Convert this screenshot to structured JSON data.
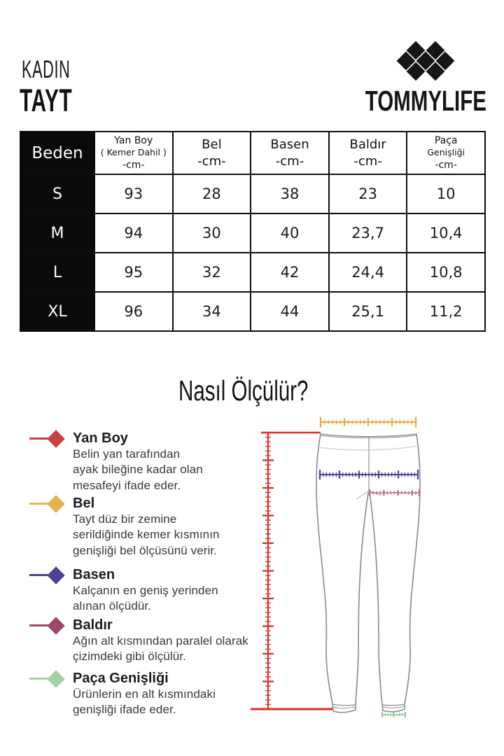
{
  "header": {
    "category": "KADIN",
    "product_type": "TAYT",
    "brand": "TOMMYLIFE"
  },
  "size_table": {
    "corner_label": "Beden",
    "columns": [
      {
        "title": "Yan Boy",
        "subtitle": "( Kemer Dahil )",
        "unit": "-cm-"
      },
      {
        "title": "Bel",
        "subtitle": "",
        "unit": "-cm-"
      },
      {
        "title": "Basen",
        "subtitle": "",
        "unit": "-cm-"
      },
      {
        "title": "Baldır",
        "subtitle": "",
        "unit": "-cm-"
      },
      {
        "title": "Paça",
        "subtitle": "Genişliği",
        "unit": "-cm-"
      }
    ],
    "rows": [
      {
        "size": "S",
        "values": [
          "93",
          "28",
          "38",
          "23",
          "10"
        ]
      },
      {
        "size": "M",
        "values": [
          "94",
          "30",
          "40",
          "23,7",
          "10,4"
        ]
      },
      {
        "size": "L",
        "values": [
          "95",
          "32",
          "42",
          "24,4",
          "10,8"
        ]
      },
      {
        "size": "XL",
        "values": [
          "96",
          "34",
          "44",
          "25,1",
          "11,2"
        ]
      }
    ]
  },
  "how_to_measure": {
    "title": "Nasıl Ölçülür?",
    "items": [
      {
        "label": "Yan Boy",
        "color": "#C8403E",
        "lines": [
          "Belin yan tarafından",
          "ayak bileğine kadar olan",
          "mesafeyi ifade eder."
        ]
      },
      {
        "label": "Bel",
        "color": "#E3B44F",
        "lines": [
          "Tayt düz bir zemine",
          "serildiğinde kemer kısmının",
          "genişliği bel ölçüsünü verir."
        ]
      },
      {
        "label": "Basen",
        "color": "#4C4397",
        "lines": [
          "Kalçanın en geniş yerinden",
          "alınan ölçüdür."
        ]
      },
      {
        "label": "Baldır",
        "color": "#9C4A6B",
        "lines": [
          "Ağın alt kısmından paralel olarak",
          "çizimdeki gibi ölçülür."
        ]
      },
      {
        "label": "Paça Genişliği",
        "color": "#A3CFA4",
        "lines": [
          "Ürünlerin en alt kısmındaki",
          "genişliği ifade eder."
        ]
      }
    ]
  },
  "diagram": {
    "colors": {
      "yan_boy": "#DC2E24",
      "bel": "#EBA93E",
      "basen": "#4C429B",
      "baldir": "#B06C90",
      "paca": "#90C893"
    }
  }
}
